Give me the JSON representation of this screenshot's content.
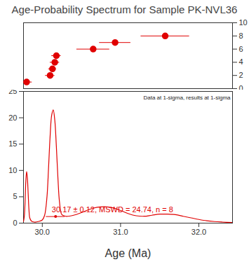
{
  "chart_data": [
    {
      "type": "scatter",
      "title": "Age-Probability Spectrum for Sample PK-NVL36",
      "x": [
        29.8,
        30.1,
        30.13,
        30.16,
        30.18,
        30.65,
        30.93,
        31.57
      ],
      "values": [
        1,
        2,
        3,
        4,
        5,
        6,
        7,
        8
      ],
      "xerr": [
        0.07,
        0.06,
        0.05,
        0.06,
        0.06,
        0.21,
        0.2,
        0.31
      ],
      "color": "#e00000",
      "xlim": [
        29.76,
        32.43
      ],
      "ylim": [
        0,
        10
      ],
      "yticks": [
        0,
        2,
        4,
        6,
        8,
        10
      ],
      "tick_labels": "y"
    },
    {
      "type": "line",
      "x": [
        29.76,
        29.77,
        29.78,
        29.79,
        29.8,
        29.81,
        29.82,
        29.83,
        29.84,
        29.86,
        29.9,
        29.95,
        30.0,
        30.03,
        30.06,
        30.08,
        30.1,
        30.12,
        30.14,
        30.16,
        30.18,
        30.2,
        30.22,
        30.25,
        30.3,
        30.4,
        30.5,
        30.6,
        30.7,
        30.8,
        30.9,
        31.0,
        31.1,
        31.2,
        31.3,
        31.4,
        31.5,
        31.6,
        31.7,
        31.8,
        31.9,
        32.0,
        32.1,
        32.2,
        32.3,
        32.43
      ],
      "values": [
        0.3,
        1.2,
        4.0,
        8.0,
        9.8,
        8.5,
        5.5,
        2.5,
        1.0,
        0.4,
        0.2,
        0.3,
        0.6,
        1.5,
        5.0,
        10.5,
        16.5,
        20.5,
        21.5,
        19.5,
        14.5,
        8.5,
        4.0,
        1.6,
        1.3,
        1.5,
        2.0,
        2.6,
        3.0,
        3.1,
        2.9,
        2.4,
        1.8,
        1.4,
        1.3,
        1.5,
        1.7,
        1.7,
        1.6,
        1.3,
        1.0,
        0.7,
        0.45,
        0.3,
        0.2,
        0.1
      ],
      "color": "#e00000",
      "x_label": "Age (Ma)",
      "xlim": [
        29.76,
        32.43
      ],
      "ylim": [
        0,
        25
      ],
      "xticks": [
        {
          "value": 30,
          "label": "30.0"
        },
        {
          "value": 31,
          "label": "31.0"
        },
        {
          "value": 32,
          "label": "32.0"
        }
      ],
      "yticks": [
        0,
        5,
        10,
        15,
        20,
        25
      ],
      "annotations": [
        {
          "text": "30.17 ± 0.12, MSWD = 24.74, n = 8",
          "x": 30.17,
          "xerr": 0.12
        },
        {
          "text": "Data at 1-sigma, results at 1-sigma"
        }
      ]
    }
  ]
}
